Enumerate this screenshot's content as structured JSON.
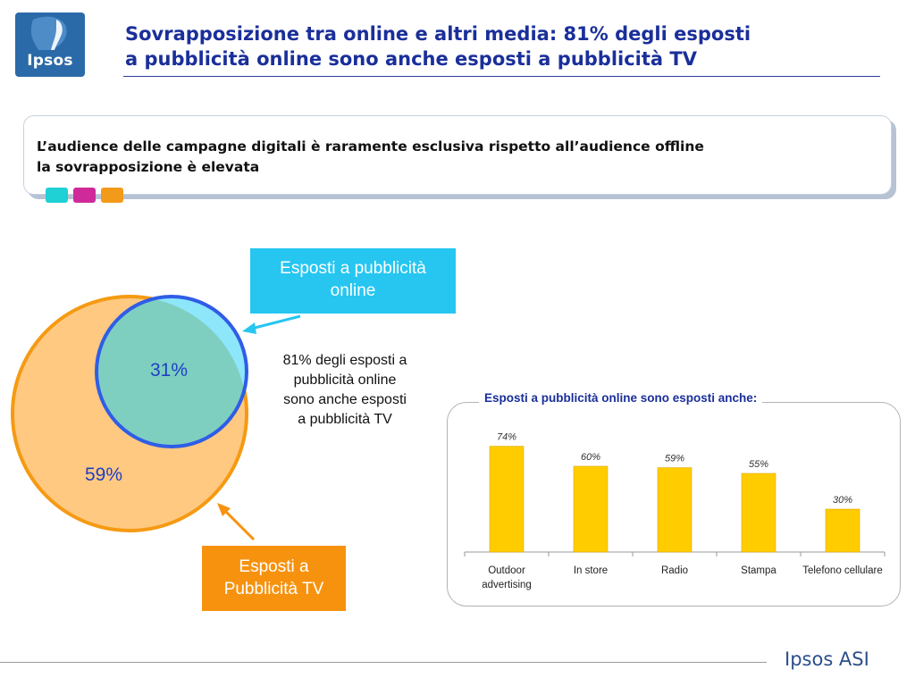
{
  "logo": {
    "text": "Ipsos"
  },
  "title": {
    "line1": "Sovrapposizione tra online e altri media: 81% degli esposti",
    "line2": "a pubblicità online sono anche esposti a pubblicità TV"
  },
  "subtitle": {
    "line1": "L’audience delle campagne digitali è raramente esclusiva rispetto all’audience offline",
    "line2": "la sovrapposizione è elevata"
  },
  "venn": {
    "overlap_label": "31%",
    "tv_label": "59%",
    "online_callout": {
      "line1": "Esposti a pubblicità",
      "line2": "online"
    },
    "tv_callout": {
      "line1": "Esposti a",
      "line2": "Pubblicità TV"
    },
    "note": {
      "line1": "81% degli esposti a",
      "line2": "pubblicità online",
      "line3": "sono anche esposti",
      "line4": "a pubblicità TV"
    }
  },
  "colors": {
    "title_blue": "#1a2f9a",
    "online_cyan": "#26c6f1",
    "tv_orange": "#f7920f",
    "bar_yellow": "#ffcc00",
    "venn_overlap": "#7ecfc0"
  },
  "chart_data": {
    "type": "bar",
    "title": "Esposti a pubblicità online sono esposti anche:",
    "categories": [
      "Outdoor advertising",
      "In store",
      "Radio",
      "Stampa",
      "Telefono cellulare"
    ],
    "category_lines": [
      [
        "Outdoor",
        "advertising"
      ],
      [
        "In store"
      ],
      [
        "Radio"
      ],
      [
        "Stampa"
      ],
      [
        "Telefono cellulare"
      ]
    ],
    "values": [
      74,
      60,
      59,
      55,
      30
    ],
    "value_labels": [
      "74%",
      "60%",
      "59%",
      "55%",
      "30%"
    ],
    "unit": "%",
    "ylim": [
      0,
      80
    ],
    "grid": false,
    "legend": "none"
  },
  "footer": {
    "brand": "Ipsos ASI"
  }
}
